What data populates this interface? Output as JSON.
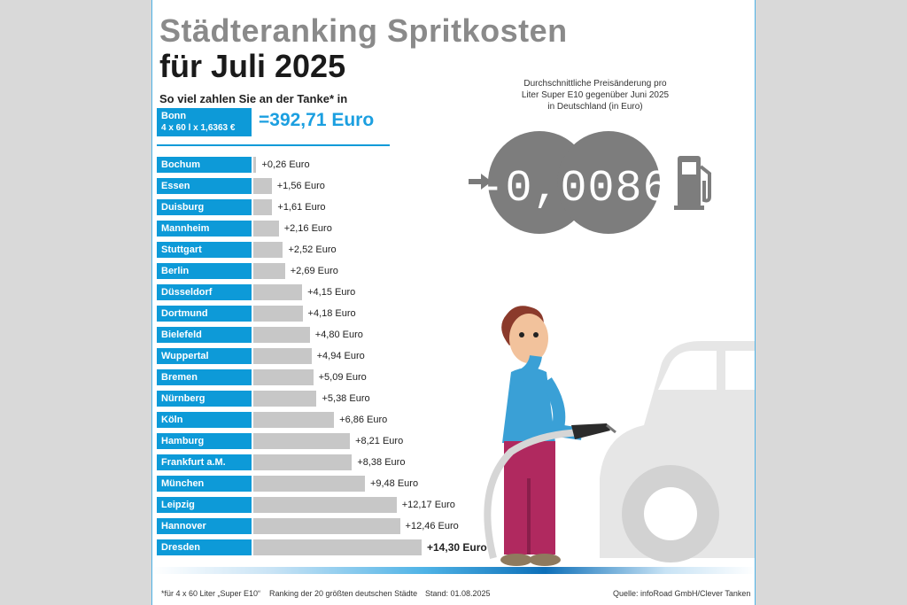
{
  "title_line1": "Städteranking Spritkosten",
  "title_line2": "für Juli 2025",
  "subtitle": "So viel zahlen Sie an der Tanke* in",
  "reference": {
    "city": "Bonn",
    "formula": "4 x 60 l x 1,6363 €",
    "total": "=392,71 Euro"
  },
  "price_change": {
    "caption": "Durchschnittliche Preisänderung pro Liter Super E10 gegenüber Juni 2025 in Deutschland (in Euro)",
    "value": "-0,0086"
  },
  "colors": {
    "accent": "#0d9ad8",
    "bar": "#c7c7c7",
    "title_gray": "#8a8a8a",
    "total_blue": "#1b9fe0"
  },
  "chart_data": {
    "type": "bar",
    "orientation": "horizontal",
    "categories": [
      "Bochum",
      "Essen",
      "Duisburg",
      "Mannheim",
      "Stuttgart",
      "Berlin",
      "Düsseldorf",
      "Dortmund",
      "Bielefeld",
      "Wuppertal",
      "Bremen",
      "Nürnberg",
      "Köln",
      "Hamburg",
      "Frankfurt a.M.",
      "München",
      "Leipzig",
      "Hannover",
      "Dresden"
    ],
    "values": [
      0.26,
      1.56,
      1.61,
      2.16,
      2.52,
      2.69,
      4.15,
      4.18,
      4.8,
      4.94,
      5.09,
      5.38,
      6.86,
      8.21,
      8.38,
      9.48,
      12.17,
      12.46,
      14.3
    ],
    "labels": [
      "+0,26 Euro",
      "+1,56 Euro",
      "+1,61 Euro",
      "+2,16 Euro",
      "+2,52 Euro",
      "+2,69 Euro",
      "+4,15 Euro",
      "+4,18 Euro",
      "+4,80 Euro",
      "+4,94 Euro",
      "+5,09 Euro",
      "+5,38 Euro",
      "+6,86 Euro",
      "+8,21 Euro",
      "+8,38 Euro",
      "+9,48 Euro",
      "+12,17 Euro",
      "+12,46 Euro",
      "+14,30 Euro"
    ],
    "highlight_last": true
  },
  "footer": {
    "footnote": "*für 4 x 60 Liter „Super E10“",
    "ranking": "Ranking der 20 größten deutschen Städte",
    "date": "Stand: 01.08.2025",
    "source": "Quelle: infoRoad GmbH/Clever Tanken"
  }
}
